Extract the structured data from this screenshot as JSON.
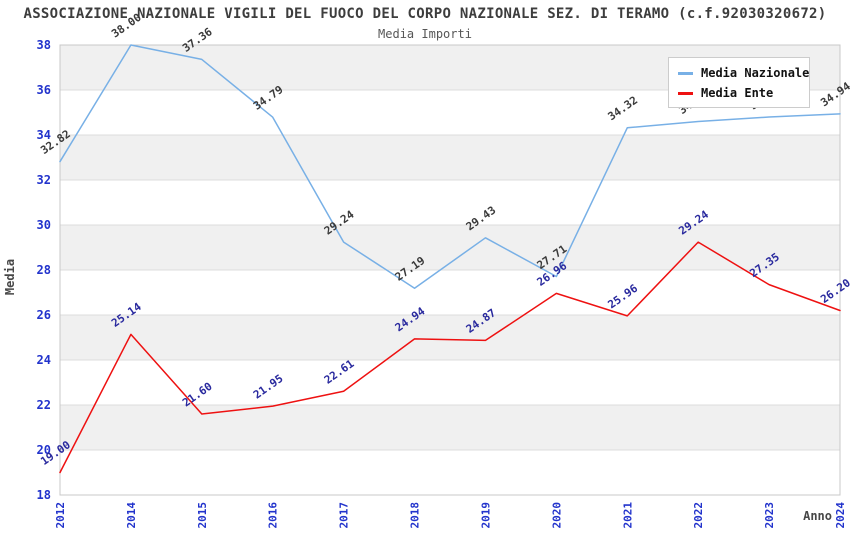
{
  "title": "ASSOCIAZIONE NAZIONALE VIGILI DEL FUOCO DEL CORPO NAZIONALE SEZ. DI TERAMO (c.f.92030320672)",
  "subtitle": "Media Importi",
  "legend": {
    "items": [
      {
        "label": "Media Nazionale",
        "color": "#78B0E6"
      },
      {
        "label": "Media Ente",
        "color": "#EE1111"
      }
    ]
  },
  "chart_data": {
    "type": "line",
    "title": "Media Importi",
    "xlabel": "Anno",
    "ylabel": "Media",
    "categories": [
      "2012",
      "2014",
      "2015",
      "2016",
      "2017",
      "2018",
      "2019",
      "2020",
      "2021",
      "2022",
      "2023",
      "2024"
    ],
    "series": [
      {
        "name": "Media Nazionale",
        "color": "#78B0E6",
        "label_color": "#3a3a3a",
        "values": [
          32.82,
          38.0,
          37.36,
          34.79,
          29.24,
          27.19,
          29.43,
          27.71,
          34.32,
          34.6,
          34.8,
          34.94
        ]
      },
      {
        "name": "Media Ente",
        "color": "#EE1111",
        "label_color": "#29299e",
        "values": [
          19.0,
          25.14,
          21.6,
          21.95,
          22.61,
          24.94,
          24.87,
          26.96,
          25.96,
          29.24,
          27.35,
          26.2
        ]
      }
    ],
    "ylim": [
      18,
      38
    ],
    "yticks": [
      18,
      20,
      22,
      24,
      26,
      28,
      30,
      32,
      34,
      36,
      38
    ],
    "grid": true,
    "band_fill_pairs": [
      [
        36,
        38
      ],
      [
        32,
        34
      ],
      [
        28,
        30
      ],
      [
        24,
        26
      ],
      [
        20,
        22
      ]
    ],
    "legend_position": "top-right",
    "colors": {
      "tick_label": "#2233cc",
      "band": "#f0f0f0",
      "gridline": "#dddddd",
      "plot_border": "#c8c8c8"
    }
  }
}
